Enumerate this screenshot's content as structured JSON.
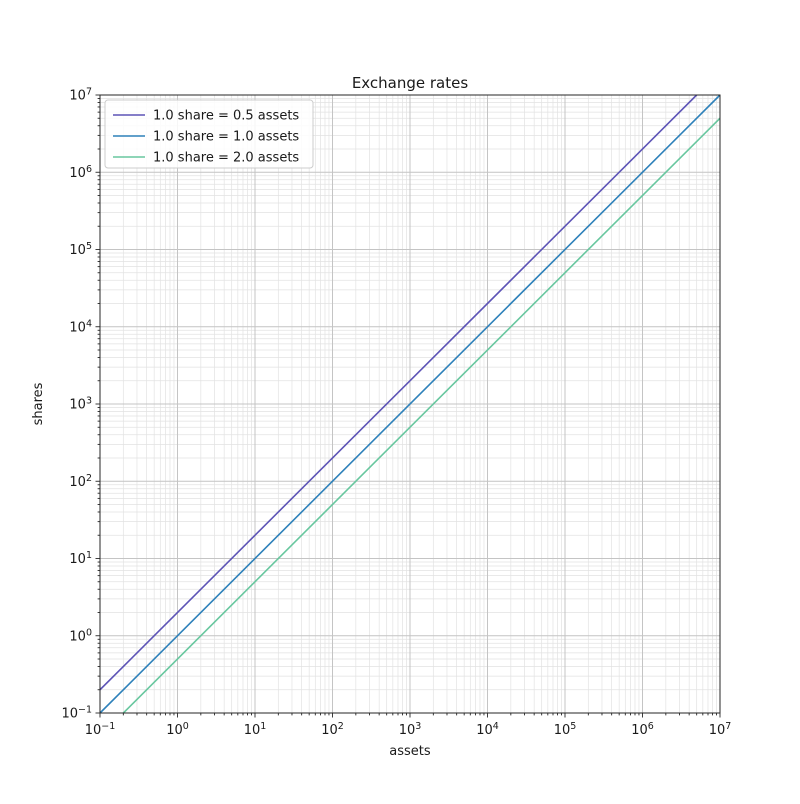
{
  "chart_data": {
    "type": "line",
    "title": "Exchange rates",
    "xlabel": "assets",
    "ylabel": "shares",
    "xscale": "log",
    "yscale": "log",
    "xlim": [
      0.1,
      10000000
    ],
    "ylim": [
      0.1,
      10000000
    ],
    "x_tick_exponents": [
      -1,
      0,
      1,
      2,
      3,
      4,
      5,
      6,
      7
    ],
    "y_tick_exponents": [
      -1,
      0,
      1,
      2,
      3,
      4,
      5,
      6,
      7
    ],
    "grid": {
      "which": "both",
      "major_color": "#c4c4c4",
      "minor_color": "#e2e2e2"
    },
    "legend": {
      "position": "upper-left",
      "frame": true,
      "border_color": "#cccccc",
      "background": "#ffffff"
    },
    "series": [
      {
        "label": "1.0 share = 0.5 assets",
        "color": "#5d54b6",
        "assets_per_share": 0.5,
        "points": [
          [
            0.1,
            0.2
          ],
          [
            5000000,
            10000000
          ]
        ]
      },
      {
        "label": "1.0 share = 1.0 assets",
        "color": "#2e81ba",
        "assets_per_share": 1.0,
        "points": [
          [
            0.1,
            0.1
          ],
          [
            10000000,
            10000000
          ]
        ]
      },
      {
        "label": "1.0 share = 2.0 assets",
        "color": "#68c79f",
        "assets_per_share": 2.0,
        "points": [
          [
            0.2,
            0.1
          ],
          [
            10000000,
            5000000
          ]
        ]
      }
    ],
    "colors": {
      "spine": "#262626",
      "tick": "#262626",
      "text": "#1a1a1a",
      "background": "#ffffff"
    }
  }
}
